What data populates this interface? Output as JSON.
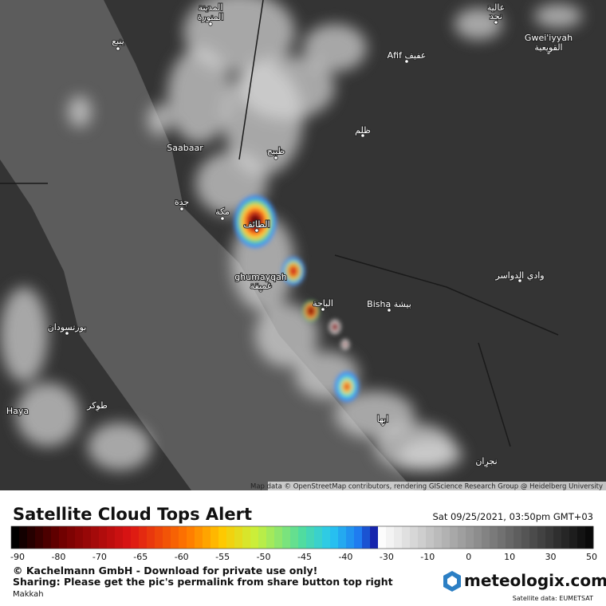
{
  "map": {
    "labels": [
      "المدينة",
      "المنورة",
      "ينبع",
      "عالية",
      "نجد",
      "Gwei'iyyah",
      "القويعية",
      "Afif عفيف",
      "ظلم",
      "Saabaar",
      "ظبيح",
      "جدة",
      "مكة",
      "الطائف",
      "ghumayqah",
      "غميقة",
      "وادي الدواسر",
      "الباحة",
      "Bisha بيشة",
      "بورتسودان",
      "طوكر",
      "Haya",
      "ابها",
      "نجران"
    ],
    "attribution": "Map data © OpenStreetMap contributors, rendering GIScience Research Group @ Heidelberg University"
  },
  "footer": {
    "title": "Satellite Cloud Tops Alert",
    "timestamp": "Sat 09/25/2021, 03:50pm GMT+03",
    "colorbar_ticks": [
      -90,
      -80,
      -70,
      -65,
      -60,
      -55,
      -50,
      -45,
      -40,
      -30,
      -10,
      0,
      10,
      30,
      50
    ],
    "copyright": "© Kachelmann GmbH - Download for private use only!",
    "sharing": "Sharing: Please get the pic's permalink from share button top right",
    "location": "Makkah",
    "logo": "meteologix.com",
    "source": "Satellite data: EUMETSAT"
  }
}
